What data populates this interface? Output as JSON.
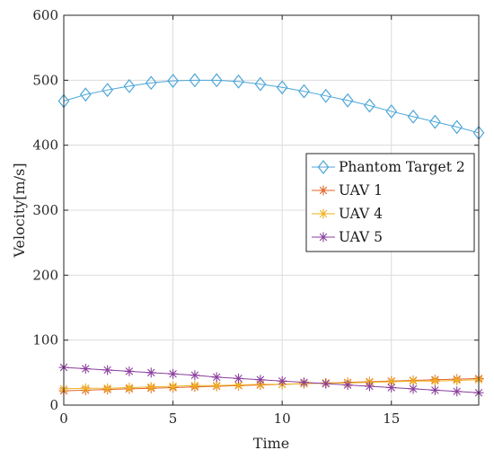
{
  "chart_data": {
    "type": "line",
    "title": "",
    "xlabel": "Time",
    "ylabel": "Velocity[m/s]",
    "xlim": [
      0,
      19
    ],
    "ylim": [
      0,
      600
    ],
    "xticks": [
      0,
      5,
      10,
      15
    ],
    "yticks": [
      0,
      100,
      200,
      300,
      400,
      500,
      600
    ],
    "grid": true,
    "legend_position": "center-right",
    "x": [
      0,
      1,
      2,
      3,
      4,
      5,
      6,
      7,
      8,
      9,
      10,
      11,
      12,
      13,
      14,
      15,
      16,
      17,
      18,
      19
    ],
    "series": [
      {
        "name": "Phantom Target 2",
        "color": "#4DA6D9",
        "marker": "diamond",
        "values": [
          468,
          478,
          485,
          491,
          496,
          499,
          500,
          500,
          498,
          494,
          489,
          483,
          476,
          469,
          461,
          452,
          444,
          436,
          428,
          419
        ]
      },
      {
        "name": "UAV 1",
        "color": "#E0652A",
        "marker": "asterisk",
        "values": [
          22,
          23,
          24,
          25,
          26,
          27,
          28,
          29,
          30,
          31,
          32,
          33,
          34,
          35,
          36,
          37,
          38,
          39,
          40,
          41
        ]
      },
      {
        "name": "UAV 4",
        "color": "#EFB21E",
        "marker": "asterisk",
        "values": [
          25,
          26,
          26,
          27,
          28,
          29,
          30,
          30,
          31,
          32,
          32,
          33,
          34,
          34,
          35,
          36,
          37,
          37,
          38,
          39
        ]
      },
      {
        "name": "UAV 5",
        "color": "#8B3F9E",
        "marker": "asterisk",
        "values": [
          58,
          56,
          54,
          52,
          50,
          48,
          46,
          43,
          41,
          39,
          37,
          35,
          33,
          31,
          29,
          27,
          25,
          23,
          21,
          19
        ]
      }
    ]
  }
}
